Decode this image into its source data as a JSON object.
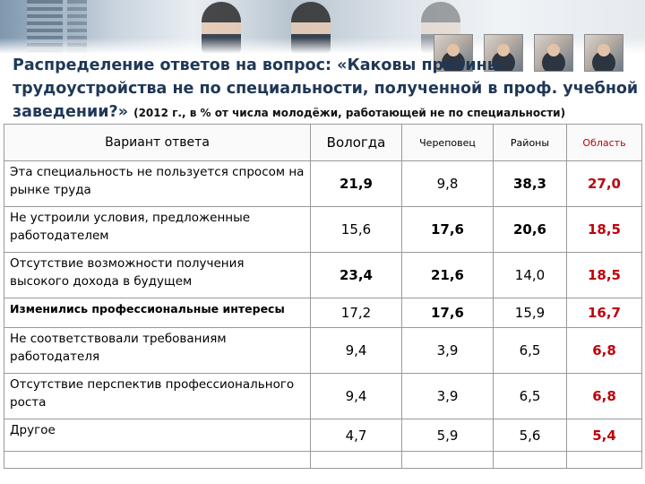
{
  "title": {
    "main": "Распределение ответов на вопрос: «Каковы причины трудоустройства не по специальности, полученной в проф. учебной заведении?»",
    "note": "(2012 г., в % от числа молодёжи, работающей не по специальности)"
  },
  "table": {
    "columns": [
      "Вариант ответа",
      "Вологда",
      "Череповец",
      "Районы",
      "Область"
    ],
    "rows": [
      {
        "label": "Эта специальность не пользуется спросом на рынке труда",
        "values": [
          "21,9",
          "9,8",
          "38,3",
          "27,0"
        ]
      },
      {
        "label": "Не устроили условия, предложенные работодателем",
        "values": [
          "15,6",
          "17,6",
          "20,6",
          "18,5"
        ]
      },
      {
        "label": "Отсутствие возможности получения высокого дохода в будущем",
        "values": [
          "23,4",
          "21,6",
          "14,0",
          "18,5"
        ]
      },
      {
        "label": "Изменились профессиональные интересы",
        "values": [
          "17,2",
          "17,6",
          "15,9",
          "16,7"
        ]
      },
      {
        "label": "Не соответствовали требованиям работодателя",
        "values": [
          "9,4",
          "3,9",
          "6,5",
          "6,8"
        ]
      },
      {
        "label": "Отсутствие перспектив профессионального роста",
        "values": [
          "9,4",
          "3,9",
          "6,5",
          "6,8"
        ]
      },
      {
        "label": "Другое",
        "values": [
          "4,7",
          "5,9",
          "5,6",
          "5,4"
        ]
      }
    ]
  },
  "colors": {
    "title": "#1f3857",
    "highlight": "#c0000a",
    "border": "#9a9a9a"
  }
}
